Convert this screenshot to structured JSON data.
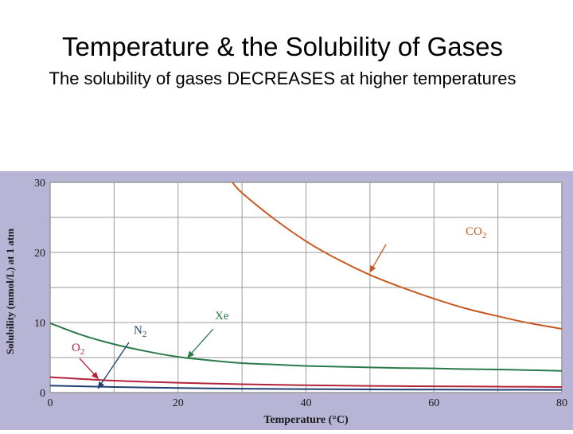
{
  "slide": {
    "title": "Temperature & the Solubility of Gases",
    "subtitle": "The solubility of gases DECREASES at higher temperatures"
  },
  "colors": {
    "background_band": "#b7b4d6",
    "plot_bg": "#ffffff",
    "grid": "#9a9a9a",
    "co2": "#c8591f",
    "xe": "#2a7a4a",
    "o2": "#b0243a",
    "n2": "#1f3f73"
  },
  "chart_data": {
    "type": "line",
    "title": "",
    "xlabel": "Temperature (°C)",
    "ylabel": "Solubility (mmol/L) at 1 atm",
    "xlim": [
      0,
      80
    ],
    "ylim": [
      0,
      30
    ],
    "x_ticks": [
      0,
      20,
      40,
      60,
      80
    ],
    "y_ticks": [
      0,
      10,
      20,
      30
    ],
    "grid": true,
    "series": [
      {
        "name": "CO2",
        "label_main": "CO",
        "label_sub": "2",
        "color": "#c8591f",
        "x": [
          28.5,
          30,
          35,
          40,
          45,
          50,
          55,
          60,
          65,
          70,
          75,
          80
        ],
        "y": [
          30,
          28.5,
          24.8,
          21.6,
          19.0,
          16.8,
          15.0,
          13.4,
          12.0,
          10.9,
          9.9,
          9.1
        ]
      },
      {
        "name": "Xe",
        "label_main": "Xe",
        "label_sub": "",
        "color": "#2a7a4a",
        "x": [
          0,
          5,
          10,
          15,
          20,
          25,
          30,
          35,
          40,
          45,
          50,
          55,
          60,
          65,
          70,
          75,
          80
        ],
        "y": [
          9.9,
          8.2,
          6.9,
          5.9,
          5.1,
          4.6,
          4.2,
          4.0,
          3.8,
          3.7,
          3.6,
          3.5,
          3.45,
          3.35,
          3.3,
          3.2,
          3.1
        ]
      },
      {
        "name": "O2",
        "label_main": "O",
        "label_sub": "2",
        "color": "#b0243a",
        "x": [
          0,
          10,
          20,
          30,
          40,
          50,
          60,
          70,
          80
        ],
        "y": [
          2.2,
          1.7,
          1.4,
          1.2,
          1.05,
          0.95,
          0.9,
          0.85,
          0.8
        ]
      },
      {
        "name": "N2",
        "label_main": "N",
        "label_sub": "2",
        "color": "#1f3f73",
        "x": [
          0,
          10,
          20,
          30,
          40,
          50,
          60,
          70,
          80
        ],
        "y": [
          1.0,
          0.8,
          0.65,
          0.55,
          0.5,
          0.45,
          0.42,
          0.4,
          0.38
        ]
      }
    ]
  }
}
